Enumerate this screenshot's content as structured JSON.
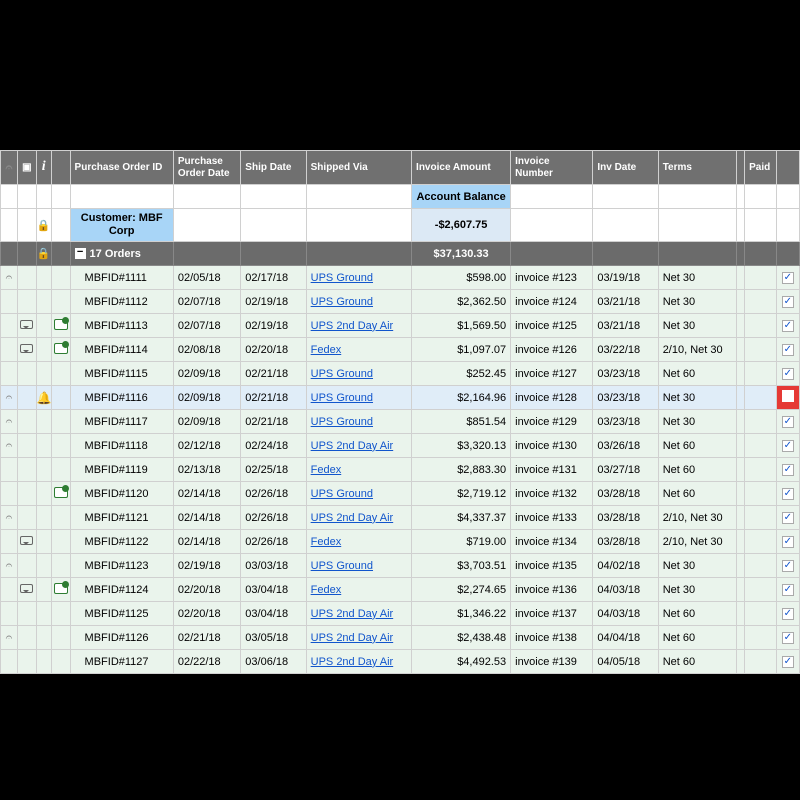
{
  "colors": {
    "header_bg": "#707070",
    "header_fg": "#ffffff",
    "customer_bg": "#a8d5f7",
    "balance_value_bg": "#dce9f5",
    "group_bg": "#6b6b6b",
    "row_bg": "#eaf4ec",
    "row_highlight_bg": "#e0edf8",
    "link": "#1155cc",
    "paid_unpaid_bg": "#e53935",
    "bell": "#f5a623",
    "flag": "#2e7d32",
    "grid": "#d0d0d0"
  },
  "columns": [
    {
      "key": "attach",
      "label": "📎",
      "width": 16
    },
    {
      "key": "comment",
      "label": "■",
      "width": 18
    },
    {
      "key": "info",
      "label": "i",
      "width": 14
    },
    {
      "key": "flag",
      "label": "",
      "width": 18
    },
    {
      "key": "po_id",
      "label": "Purchase Order ID",
      "width": 98
    },
    {
      "key": "po_date",
      "label": "Purchase Order Date",
      "width": 64
    },
    {
      "key": "ship_date",
      "label": "Ship Date",
      "width": 62
    },
    {
      "key": "shipped_via",
      "label": "Shipped Via",
      "width": 100
    },
    {
      "key": "invoice_amount",
      "label": "Invoice Amount",
      "width": 94
    },
    {
      "key": "invoice_number",
      "label": "Invoice Number",
      "width": 78
    },
    {
      "key": "inv_date",
      "label": "Inv Date",
      "width": 62
    },
    {
      "key": "terms",
      "label": "Terms",
      "width": 74
    },
    {
      "key": "spacer",
      "label": "",
      "width": 8
    },
    {
      "key": "paid_label",
      "label": "Paid",
      "width": 30
    },
    {
      "key": "paid",
      "label": "",
      "width": 22
    }
  ],
  "account_balance_label": "Account Balance",
  "customer_label": "Customer: MBF Corp",
  "account_balance_value": "-$2,607.75",
  "group": {
    "count_label": "17 Orders",
    "total": "$37,130.33"
  },
  "rows": [
    {
      "attach": true,
      "comment": false,
      "flag": false,
      "bell": false,
      "po_id": "MBFID#1111",
      "po_date": "02/05/18",
      "ship_date": "02/17/18",
      "shipped_via": "UPS Ground",
      "invoice_amount": "$598.00",
      "invoice_number": "invoice #123",
      "inv_date": "03/19/18",
      "terms": "Net 30",
      "paid": true,
      "highlight": false
    },
    {
      "attach": false,
      "comment": false,
      "flag": false,
      "bell": false,
      "po_id": "MBFID#1112",
      "po_date": "02/07/18",
      "ship_date": "02/19/18",
      "shipped_via": "UPS Ground",
      "invoice_amount": "$2,362.50",
      "invoice_number": "invoice #124",
      "inv_date": "03/21/18",
      "terms": "Net 30",
      "paid": true,
      "highlight": false
    },
    {
      "attach": false,
      "comment": true,
      "flag": true,
      "bell": false,
      "po_id": "MBFID#1113",
      "po_date": "02/07/18",
      "ship_date": "02/19/18",
      "shipped_via": "UPS 2nd Day Air",
      "invoice_amount": "$1,569.50",
      "invoice_number": "invoice #125",
      "inv_date": "03/21/18",
      "terms": "Net 30",
      "paid": true,
      "highlight": false
    },
    {
      "attach": false,
      "comment": true,
      "flag": true,
      "bell": false,
      "po_id": "MBFID#1114",
      "po_date": "02/08/18",
      "ship_date": "02/20/18",
      "shipped_via": "Fedex",
      "invoice_amount": "$1,097.07",
      "invoice_number": "invoice #126",
      "inv_date": "03/22/18",
      "terms": "2/10, Net 30",
      "paid": true,
      "highlight": false
    },
    {
      "attach": false,
      "comment": false,
      "flag": false,
      "bell": false,
      "po_id": "MBFID#1115",
      "po_date": "02/09/18",
      "ship_date": "02/21/18",
      "shipped_via": "UPS Ground",
      "invoice_amount": "$252.45",
      "invoice_number": "invoice #127",
      "inv_date": "03/23/18",
      "terms": "Net 60",
      "paid": true,
      "highlight": false
    },
    {
      "attach": true,
      "comment": false,
      "flag": false,
      "bell": true,
      "po_id": "MBFID#1116",
      "po_date": "02/09/18",
      "ship_date": "02/21/18",
      "shipped_via": "UPS Ground",
      "invoice_amount": "$2,164.96",
      "invoice_number": "invoice #128",
      "inv_date": "03/23/18",
      "terms": "Net 30",
      "paid": false,
      "highlight": true
    },
    {
      "attach": true,
      "comment": false,
      "flag": false,
      "bell": false,
      "po_id": "MBFID#1117",
      "po_date": "02/09/18",
      "ship_date": "02/21/18",
      "shipped_via": "UPS Ground",
      "invoice_amount": "$851.54",
      "invoice_number": "invoice #129",
      "inv_date": "03/23/18",
      "terms": "Net 30",
      "paid": true,
      "highlight": false
    },
    {
      "attach": true,
      "comment": false,
      "flag": false,
      "bell": false,
      "po_id": "MBFID#1118",
      "po_date": "02/12/18",
      "ship_date": "02/24/18",
      "shipped_via": "UPS 2nd Day Air",
      "invoice_amount": "$3,320.13",
      "invoice_number": "invoice #130",
      "inv_date": "03/26/18",
      "terms": "Net 60",
      "paid": true,
      "highlight": false
    },
    {
      "attach": false,
      "comment": false,
      "flag": false,
      "bell": false,
      "po_id": "MBFID#1119",
      "po_date": "02/13/18",
      "ship_date": "02/25/18",
      "shipped_via": "Fedex",
      "invoice_amount": "$2,883.30",
      "invoice_number": "invoice #131",
      "inv_date": "03/27/18",
      "terms": "Net 60",
      "paid": true,
      "highlight": false
    },
    {
      "attach": false,
      "comment": false,
      "flag": true,
      "bell": false,
      "po_id": "MBFID#1120",
      "po_date": "02/14/18",
      "ship_date": "02/26/18",
      "shipped_via": "UPS Ground",
      "invoice_amount": "$2,719.12",
      "invoice_number": "invoice #132",
      "inv_date": "03/28/18",
      "terms": "Net 60",
      "paid": true,
      "highlight": false
    },
    {
      "attach": true,
      "comment": false,
      "flag": false,
      "bell": false,
      "po_id": "MBFID#1121",
      "po_date": "02/14/18",
      "ship_date": "02/26/18",
      "shipped_via": "UPS 2nd Day Air",
      "invoice_amount": "$4,337.37",
      "invoice_number": "invoice #133",
      "inv_date": "03/28/18",
      "terms": "2/10, Net 30",
      "paid": true,
      "highlight": false
    },
    {
      "attach": false,
      "comment": true,
      "flag": false,
      "bell": false,
      "po_id": "MBFID#1122",
      "po_date": "02/14/18",
      "ship_date": "02/26/18",
      "shipped_via": "Fedex",
      "invoice_amount": "$719.00",
      "invoice_number": "invoice #134",
      "inv_date": "03/28/18",
      "terms": "2/10, Net 30",
      "paid": true,
      "highlight": false
    },
    {
      "attach": true,
      "comment": false,
      "flag": false,
      "bell": false,
      "po_id": "MBFID#1123",
      "po_date": "02/19/18",
      "ship_date": "03/03/18",
      "shipped_via": "UPS Ground",
      "invoice_amount": "$3,703.51",
      "invoice_number": "invoice #135",
      "inv_date": "04/02/18",
      "terms": "Net 30",
      "paid": true,
      "highlight": false
    },
    {
      "attach": false,
      "comment": true,
      "flag": true,
      "bell": false,
      "po_id": "MBFID#1124",
      "po_date": "02/20/18",
      "ship_date": "03/04/18",
      "shipped_via": "Fedex",
      "invoice_amount": "$2,274.65",
      "invoice_number": "invoice #136",
      "inv_date": "04/03/18",
      "terms": "Net 30",
      "paid": true,
      "highlight": false
    },
    {
      "attach": false,
      "comment": false,
      "flag": false,
      "bell": false,
      "po_id": "MBFID#1125",
      "po_date": "02/20/18",
      "ship_date": "03/04/18",
      "shipped_via": "UPS 2nd Day Air",
      "invoice_amount": "$1,346.22",
      "invoice_number": "invoice #137",
      "inv_date": "04/03/18",
      "terms": "Net 60",
      "paid": true,
      "highlight": false
    },
    {
      "attach": true,
      "comment": false,
      "flag": false,
      "bell": false,
      "po_id": "MBFID#1126",
      "po_date": "02/21/18",
      "ship_date": "03/05/18",
      "shipped_via": "UPS 2nd Day Air",
      "invoice_amount": "$2,438.48",
      "invoice_number": "invoice #138",
      "inv_date": "04/04/18",
      "terms": "Net 60",
      "paid": true,
      "highlight": false
    },
    {
      "attach": false,
      "comment": false,
      "flag": false,
      "bell": false,
      "po_id": "MBFID#1127",
      "po_date": "02/22/18",
      "ship_date": "03/06/18",
      "shipped_via": "UPS 2nd Day Air",
      "invoice_amount": "$4,492.53",
      "invoice_number": "invoice #139",
      "inv_date": "04/05/18",
      "terms": "Net 60",
      "paid": true,
      "highlight": false
    }
  ]
}
